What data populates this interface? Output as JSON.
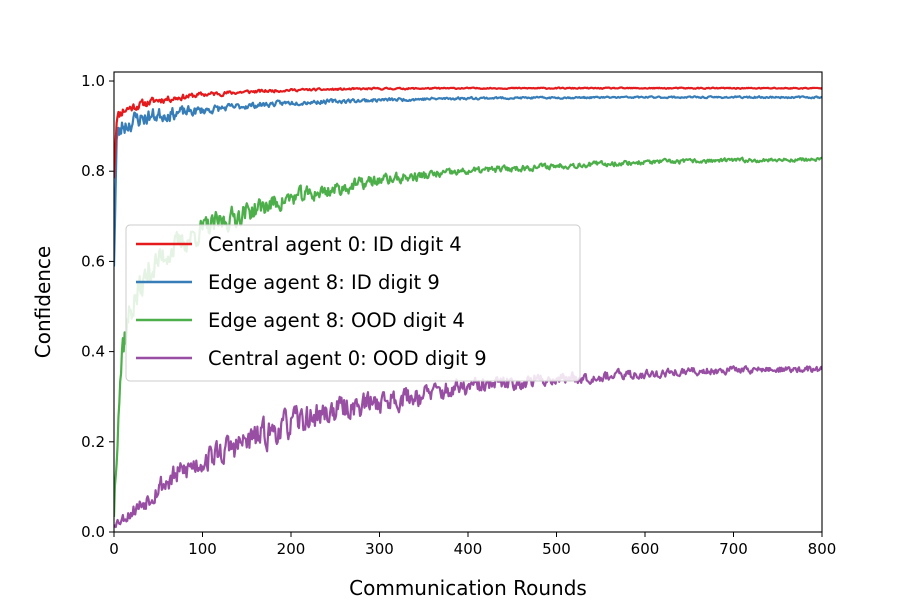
{
  "chart_data": {
    "type": "line",
    "title": "",
    "xlabel": "Communication Rounds",
    "ylabel": "Confidence",
    "xlim": [
      0,
      800
    ],
    "ylim": [
      0,
      1.02
    ],
    "x_ticks": [
      0,
      100,
      200,
      300,
      400,
      500,
      600,
      700,
      800
    ],
    "x_tick_labels": [
      "0",
      "100",
      "200",
      "300",
      "400",
      "500",
      "600",
      "700",
      "800"
    ],
    "y_ticks": [
      0.0,
      0.2,
      0.4,
      0.6,
      0.8,
      1.0
    ],
    "y_tick_labels": [
      "0.0",
      "0.2",
      "0.4",
      "0.6",
      "0.8",
      "1.0"
    ],
    "grid": false,
    "legend_position": "center-left",
    "series": [
      {
        "name": "Central agent 0: ID digit 4",
        "color": "#e41a1c",
        "anchor_x": [
          0,
          3,
          10,
          25,
          50,
          100,
          150,
          200,
          300,
          400,
          500,
          600,
          700,
          800
        ],
        "anchor_y": [
          0.79,
          0.92,
          0.935,
          0.945,
          0.958,
          0.97,
          0.976,
          0.98,
          0.983,
          0.984,
          0.984,
          0.984,
          0.984,
          0.984
        ],
        "noise_amplitude": [
          0.02,
          0.02,
          0.018,
          0.015,
          0.012,
          0.008,
          0.006,
          0.004,
          0.003,
          0.002,
          0.002,
          0.002,
          0.002,
          0.002
        ],
        "seed": 11
      },
      {
        "name": "Edge agent 8: ID digit 9",
        "color": "#377eb8",
        "anchor_x": [
          0,
          3,
          10,
          25,
          50,
          100,
          150,
          200,
          300,
          400,
          500,
          600,
          700,
          800
        ],
        "anchor_y": [
          0.6,
          0.87,
          0.9,
          0.915,
          0.925,
          0.935,
          0.945,
          0.952,
          0.958,
          0.962,
          0.963,
          0.964,
          0.964,
          0.964
        ],
        "noise_amplitude": [
          0.04,
          0.04,
          0.035,
          0.03,
          0.025,
          0.015,
          0.01,
          0.008,
          0.006,
          0.004,
          0.003,
          0.003,
          0.003,
          0.003
        ],
        "seed": 23
      },
      {
        "name": "Edge agent 8: OOD digit 4",
        "color": "#4daf4a",
        "anchor_x": [
          0,
          5,
          10,
          20,
          40,
          60,
          100,
          150,
          200,
          250,
          300,
          400,
          500,
          600,
          700,
          800
        ],
        "anchor_y": [
          0.05,
          0.3,
          0.42,
          0.5,
          0.58,
          0.62,
          0.67,
          0.71,
          0.74,
          0.76,
          0.78,
          0.8,
          0.812,
          0.82,
          0.824,
          0.826
        ],
        "noise_amplitude": [
          0.06,
          0.08,
          0.07,
          0.06,
          0.05,
          0.045,
          0.04,
          0.035,
          0.03,
          0.025,
          0.02,
          0.012,
          0.01,
          0.008,
          0.007,
          0.006
        ],
        "seed": 37
      },
      {
        "name": "Central agent 0: OOD digit 9",
        "color": "#984ea3",
        "anchor_x": [
          0,
          10,
          30,
          50,
          100,
          150,
          200,
          250,
          300,
          400,
          500,
          600,
          700,
          800
        ],
        "anchor_y": [
          0.02,
          0.03,
          0.06,
          0.1,
          0.16,
          0.2,
          0.24,
          0.27,
          0.29,
          0.32,
          0.34,
          0.35,
          0.36,
          0.36
        ],
        "noise_amplitude": [
          0.015,
          0.02,
          0.03,
          0.04,
          0.045,
          0.05,
          0.05,
          0.045,
          0.04,
          0.03,
          0.02,
          0.016,
          0.012,
          0.012
        ],
        "seed": 53
      }
    ]
  }
}
